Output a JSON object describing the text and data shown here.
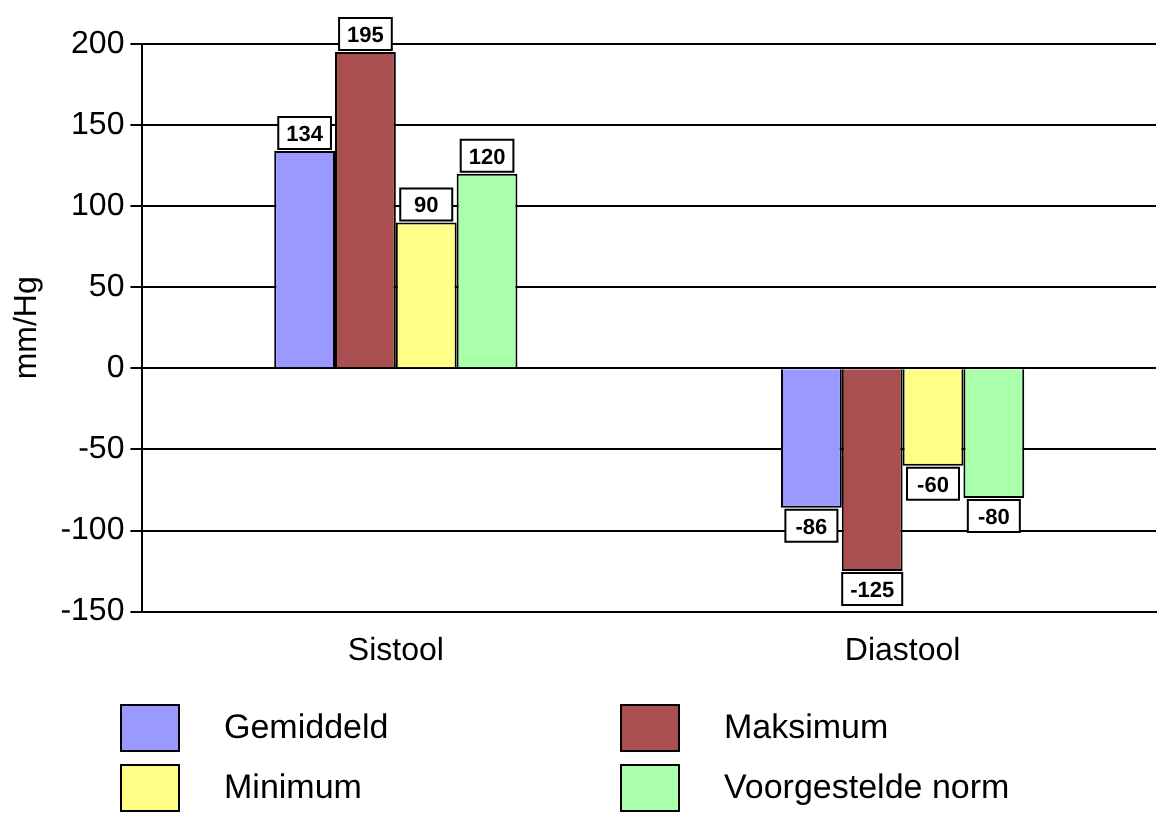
{
  "chart_data": {
    "type": "bar",
    "ylabel": "mm/Hg",
    "categories": [
      "Sistool",
      "Diastool"
    ],
    "series": [
      {
        "name": "Gemiddeld",
        "color": "#9999ff",
        "values": [
          134,
          -86
        ]
      },
      {
        "name": "Maksimum",
        "color": "#aa4f4f",
        "values": [
          195,
          -125
        ]
      },
      {
        "name": "Minimum",
        "color": "#ffff88",
        "values": [
          90,
          -60
        ]
      },
      {
        "name": "Voorgestelde norm",
        "color": "#aaffaa",
        "values": [
          120,
          -80
        ]
      }
    ],
    "ylim": [
      -150,
      200
    ],
    "yticks": [
      -150,
      -100,
      -50,
      0,
      50,
      100,
      150,
      200
    ],
    "grid": "y",
    "legend": "bottom",
    "data_labels": true
  }
}
